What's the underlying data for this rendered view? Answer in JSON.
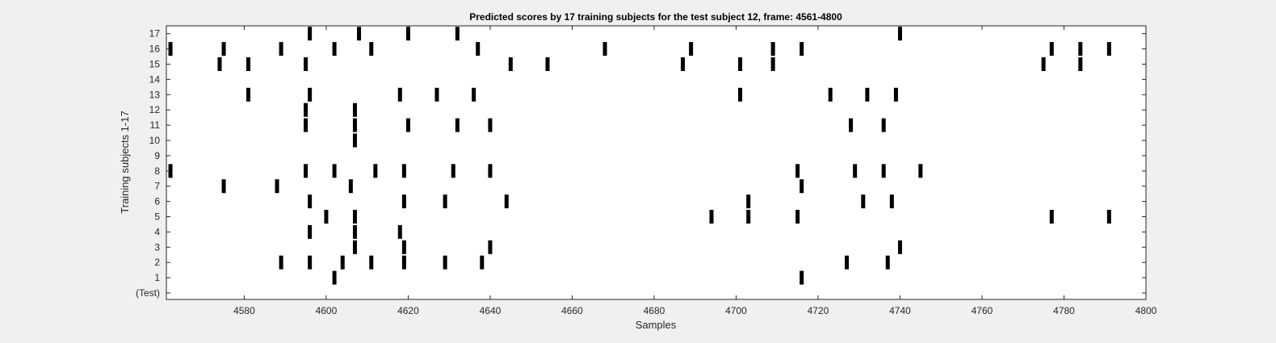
{
  "chart_data": {
    "type": "scatter",
    "title": "Predicted scores by 17 training subjects for the test subject 12, frame: 4561-4800",
    "xlabel": "Samples",
    "ylabel": "Training subjects 1-17",
    "xlim": [
      4561,
      4800
    ],
    "x_ticks": [
      4580,
      4600,
      4620,
      4640,
      4660,
      4680,
      4700,
      4720,
      4740,
      4760,
      4780,
      4800
    ],
    "y_tick_labels": [
      "(Test)",
      "1",
      "2",
      "3",
      "4",
      "5",
      "6",
      "7",
      "8",
      "9",
      "10",
      "11",
      "12",
      "13",
      "14",
      "15",
      "16",
      "17"
    ],
    "mark_color": "#000000",
    "series": [
      {
        "row": 1,
        "x": [
          4602,
          4716
        ]
      },
      {
        "row": 2,
        "x": [
          4589,
          4596,
          4604,
          4611,
          4619,
          4629,
          4638,
          4727,
          4737
        ]
      },
      {
        "row": 3,
        "x": [
          4607,
          4619,
          4640,
          4740
        ]
      },
      {
        "row": 4,
        "x": [
          4596,
          4607,
          4618
        ]
      },
      {
        "row": 5,
        "x": [
          4600,
          4607,
          4694,
          4703,
          4715,
          4777,
          4791
        ]
      },
      {
        "row": 6,
        "x": [
          4596,
          4619,
          4629,
          4644,
          4703,
          4731,
          4738
        ]
      },
      {
        "row": 7,
        "x": [
          4575,
          4588,
          4606,
          4716
        ]
      },
      {
        "row": 8,
        "x": [
          4562,
          4595,
          4602,
          4612,
          4619,
          4631,
          4640,
          4715,
          4729,
          4736,
          4745
        ]
      },
      {
        "row": 10,
        "x": [
          4607
        ]
      },
      {
        "row": 11,
        "x": [
          4595,
          4607,
          4620,
          4632,
          4640,
          4728,
          4736
        ]
      },
      {
        "row": 12,
        "x": [
          4595,
          4607
        ]
      },
      {
        "row": 13,
        "x": [
          4581,
          4596,
          4618,
          4627,
          4636,
          4701,
          4723,
          4732,
          4739
        ]
      },
      {
        "row": 15,
        "x": [
          4574,
          4581,
          4595,
          4645,
          4654,
          4687,
          4701,
          4709,
          4775,
          4784
        ]
      },
      {
        "row": 16,
        "x": [
          4562,
          4575,
          4589,
          4602,
          4611,
          4637,
          4668,
          4689,
          4709,
          4716,
          4777,
          4784,
          4791
        ]
      },
      {
        "row": 17,
        "x": [
          4596,
          4608,
          4620,
          4632,
          4740
        ]
      }
    ]
  }
}
